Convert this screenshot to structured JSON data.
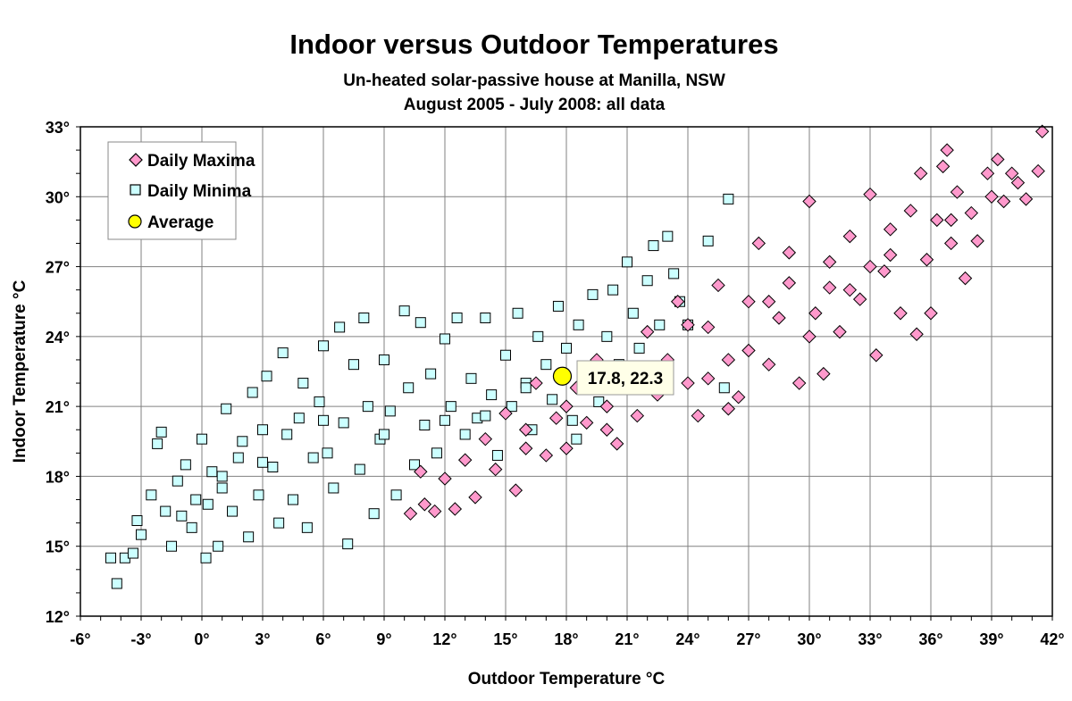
{
  "chart_data": {
    "type": "scatter",
    "title": "Indoor versus Outdoor Temperatures",
    "subtitle_lines": [
      "Un-heated solar-passive house at Manilla, NSW",
      "August 2005 - July 2008: all data"
    ],
    "xlabel": "Outdoor Temperature °C",
    "ylabel": "Indoor Temperature °C",
    "xlim": [
      -6,
      42
    ],
    "ylim": [
      12,
      33
    ],
    "xticks": [
      "-6°",
      "-3°",
      "0°",
      "3°",
      "6°",
      "9°",
      "12°",
      "15°",
      "18°",
      "21°",
      "24°",
      "27°",
      "30°",
      "33°",
      "36°",
      "39°",
      "42°"
    ],
    "yticks": [
      "12°",
      "15°",
      "18°",
      "21°",
      "24°",
      "27°",
      "30°",
      "33°"
    ],
    "grid": true,
    "legend_position": "top-left",
    "annotation": "17.8, 22.3",
    "series": [
      {
        "name": "Daily Maxima",
        "marker": "diamond",
        "color": "#ff99cc",
        "points": [
          [
            10.3,
            16.4
          ],
          [
            10.8,
            18.2
          ],
          [
            11,
            16.8
          ],
          [
            11.5,
            16.5
          ],
          [
            12,
            17.9
          ],
          [
            12.5,
            16.6
          ],
          [
            13,
            18.7
          ],
          [
            13.5,
            17.1
          ],
          [
            14,
            19.6
          ],
          [
            14.5,
            18.3
          ],
          [
            15,
            20.7
          ],
          [
            15.5,
            17.4
          ],
          [
            16,
            19.2
          ],
          [
            16.5,
            22.0
          ],
          [
            17,
            18.9
          ],
          [
            17.5,
            20.5
          ],
          [
            18,
            19.2
          ],
          [
            18.5,
            21.8
          ],
          [
            19,
            20.3
          ],
          [
            19.5,
            23.0
          ],
          [
            20,
            21.0
          ],
          [
            20.5,
            19.4
          ],
          [
            21,
            22.3
          ],
          [
            21.5,
            20.6
          ],
          [
            22,
            24.2
          ],
          [
            22.5,
            21.5
          ],
          [
            23,
            23.0
          ],
          [
            23.5,
            25.5
          ],
          [
            24,
            22.0
          ],
          [
            24.5,
            20.6
          ],
          [
            25,
            24.4
          ],
          [
            25.5,
            26.2
          ],
          [
            26,
            23.0
          ],
          [
            26.5,
            21.4
          ],
          [
            27,
            25.5
          ],
          [
            27.5,
            28.0
          ],
          [
            28,
            22.8
          ],
          [
            28.5,
            24.8
          ],
          [
            29,
            26.3
          ],
          [
            29.5,
            22.0
          ],
          [
            30,
            29.8
          ],
          [
            30.3,
            25.0
          ],
          [
            30.7,
            22.4
          ],
          [
            31,
            27.2
          ],
          [
            31.5,
            24.2
          ],
          [
            32,
            28.3
          ],
          [
            32.5,
            25.6
          ],
          [
            33,
            30.1
          ],
          [
            33.3,
            23.2
          ],
          [
            33.7,
            26.8
          ],
          [
            34,
            28.6
          ],
          [
            34.5,
            25.0
          ],
          [
            35,
            29.4
          ],
          [
            35.3,
            24.1
          ],
          [
            35.5,
            31.0
          ],
          [
            35.8,
            27.3
          ],
          [
            36,
            25.0
          ],
          [
            36.3,
            29.0
          ],
          [
            36.6,
            31.3
          ],
          [
            36.8,
            32.0
          ],
          [
            37,
            28.0
          ],
          [
            37.3,
            30.2
          ],
          [
            37.7,
            26.5
          ],
          [
            38,
            29.3
          ],
          [
            38.3,
            28.1
          ],
          [
            38.8,
            31.0
          ],
          [
            39,
            30.0
          ],
          [
            39.3,
            31.6
          ],
          [
            39.6,
            29.8
          ],
          [
            40,
            31.0
          ],
          [
            40.3,
            30.6
          ],
          [
            40.7,
            29.9
          ],
          [
            41.3,
            31.1
          ],
          [
            41.5,
            32.8
          ],
          [
            26,
            20.9
          ],
          [
            28,
            25.5
          ],
          [
            30,
            24.0
          ],
          [
            32,
            26.0
          ],
          [
            34,
            27.5
          ],
          [
            24,
            24.5
          ],
          [
            22,
            22.5
          ],
          [
            20,
            20.0
          ],
          [
            18,
            21.0
          ],
          [
            16,
            20.0
          ],
          [
            29,
            27.6
          ],
          [
            27,
            23.4
          ],
          [
            25,
            22.2
          ],
          [
            31,
            26.1
          ],
          [
            33,
            27.0
          ],
          [
            37,
            29.0
          ]
        ]
      },
      {
        "name": "Daily Minima",
        "marker": "square",
        "color": "#ccffff",
        "points": [
          [
            -4.5,
            14.5
          ],
          [
            -4.2,
            13.4
          ],
          [
            -3.8,
            14.5
          ],
          [
            -3.4,
            14.7
          ],
          [
            -3.2,
            16.1
          ],
          [
            -3.0,
            15.5
          ],
          [
            -2.5,
            17.2
          ],
          [
            -2.2,
            19.4
          ],
          [
            -2.0,
            19.9
          ],
          [
            -1.8,
            16.5
          ],
          [
            -1.5,
            15.0
          ],
          [
            -1.2,
            17.8
          ],
          [
            -1,
            16.3
          ],
          [
            -0.8,
            18.5
          ],
          [
            -0.5,
            15.8
          ],
          [
            -0.3,
            17.0
          ],
          [
            0,
            19.6
          ],
          [
            0.2,
            14.5
          ],
          [
            0.3,
            16.8
          ],
          [
            0.5,
            18.2
          ],
          [
            0.8,
            15.0
          ],
          [
            1,
            17.5
          ],
          [
            1.2,
            20.9
          ],
          [
            1.5,
            16.5
          ],
          [
            1.8,
            18.8
          ],
          [
            2,
            19.5
          ],
          [
            2.3,
            15.4
          ],
          [
            2.5,
            21.6
          ],
          [
            2.8,
            17.2
          ],
          [
            3,
            20.0
          ],
          [
            3.2,
            22.3
          ],
          [
            3.5,
            18.4
          ],
          [
            3.8,
            16.0
          ],
          [
            4,
            23.3
          ],
          [
            4.2,
            19.8
          ],
          [
            4.5,
            17.0
          ],
          [
            4.8,
            20.5
          ],
          [
            5,
            22.0
          ],
          [
            5.2,
            15.8
          ],
          [
            5.5,
            18.8
          ],
          [
            5.8,
            21.2
          ],
          [
            6,
            23.6
          ],
          [
            6.2,
            19.0
          ],
          [
            6.5,
            17.5
          ],
          [
            6.8,
            24.4
          ],
          [
            7,
            20.3
          ],
          [
            7.2,
            15.1
          ],
          [
            7.5,
            22.8
          ],
          [
            7.8,
            18.3
          ],
          [
            8,
            24.8
          ],
          [
            8.2,
            21.0
          ],
          [
            8.5,
            16.4
          ],
          [
            8.8,
            19.6
          ],
          [
            9,
            23.0
          ],
          [
            9.3,
            20.8
          ],
          [
            9.6,
            17.2
          ],
          [
            10,
            25.1
          ],
          [
            10.2,
            21.8
          ],
          [
            10.5,
            18.5
          ],
          [
            10.8,
            24.6
          ],
          [
            11,
            20.2
          ],
          [
            11.3,
            22.4
          ],
          [
            11.6,
            19.0
          ],
          [
            12,
            23.9
          ],
          [
            12.3,
            21.0
          ],
          [
            12.6,
            24.8
          ],
          [
            13,
            19.8
          ],
          [
            13.3,
            22.2
          ],
          [
            13.6,
            20.5
          ],
          [
            14,
            24.8
          ],
          [
            14.3,
            21.5
          ],
          [
            14.6,
            18.9
          ],
          [
            15,
            23.2
          ],
          [
            15.3,
            21.0
          ],
          [
            15.6,
            25.0
          ],
          [
            16,
            22.0
          ],
          [
            16.3,
            20.0
          ],
          [
            16.6,
            24.0
          ],
          [
            17,
            22.8
          ],
          [
            17.3,
            21.3
          ],
          [
            17.6,
            25.3
          ],
          [
            18,
            23.5
          ],
          [
            18.3,
            20.4
          ],
          [
            18.6,
            24.5
          ],
          [
            19,
            22.2
          ],
          [
            19.3,
            25.8
          ],
          [
            19.6,
            21.2
          ],
          [
            20,
            24.0
          ],
          [
            20.3,
            26.0
          ],
          [
            20.6,
            22.8
          ],
          [
            21,
            27.2
          ],
          [
            21.3,
            25.0
          ],
          [
            21.6,
            23.5
          ],
          [
            22,
            26.4
          ],
          [
            22.3,
            27.9
          ],
          [
            22.6,
            24.5
          ],
          [
            23,
            28.3
          ],
          [
            23.3,
            26.7
          ],
          [
            23.6,
            25.5
          ],
          [
            24,
            24.5
          ],
          [
            25,
            28.1
          ],
          [
            25.8,
            21.8
          ],
          [
            26,
            29.9
          ],
          [
            18.5,
            19.6
          ],
          [
            16,
            21.8
          ],
          [
            14,
            20.6
          ],
          [
            12,
            20.4
          ],
          [
            9,
            19.8
          ],
          [
            6,
            20.4
          ],
          [
            3,
            18.6
          ],
          [
            1,
            18.0
          ]
        ]
      },
      {
        "name": "Average",
        "marker": "circle",
        "color": "#ffff00",
        "points": [
          [
            17.8,
            22.3
          ]
        ]
      }
    ]
  }
}
